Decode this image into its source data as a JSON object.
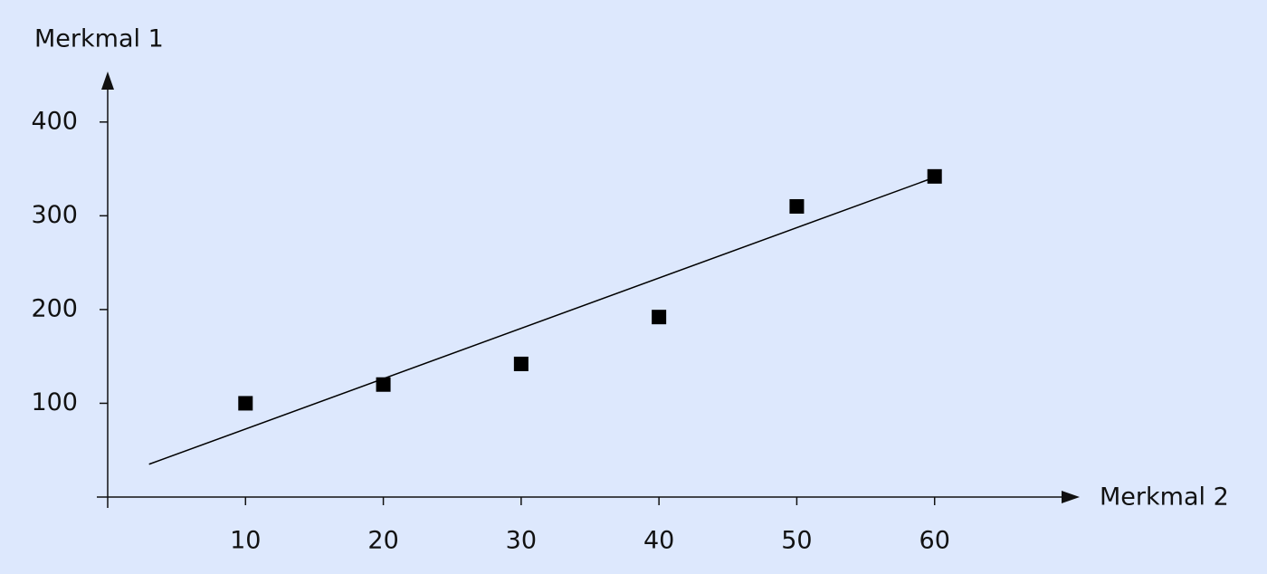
{
  "chart_data": {
    "type": "scatter",
    "x_label": "Merkmal 2",
    "y_label": "Merkmal 1",
    "series": [
      {
        "color": "#000000",
        "x": [
          10,
          20,
          30,
          40,
          50,
          60
        ],
        "values": [
          100,
          120,
          142,
          192,
          310,
          342
        ]
      }
    ],
    "trendline": {
      "color": "#000000",
      "x": [
        3,
        60
      ],
      "values": [
        35,
        341
      ]
    },
    "xlim": [
      0,
      70
    ],
    "ylim": [
      0,
      450
    ],
    "xticks": [
      10,
      20,
      30,
      40,
      50,
      60
    ],
    "yticks": [
      100,
      200,
      300,
      400
    ]
  }
}
